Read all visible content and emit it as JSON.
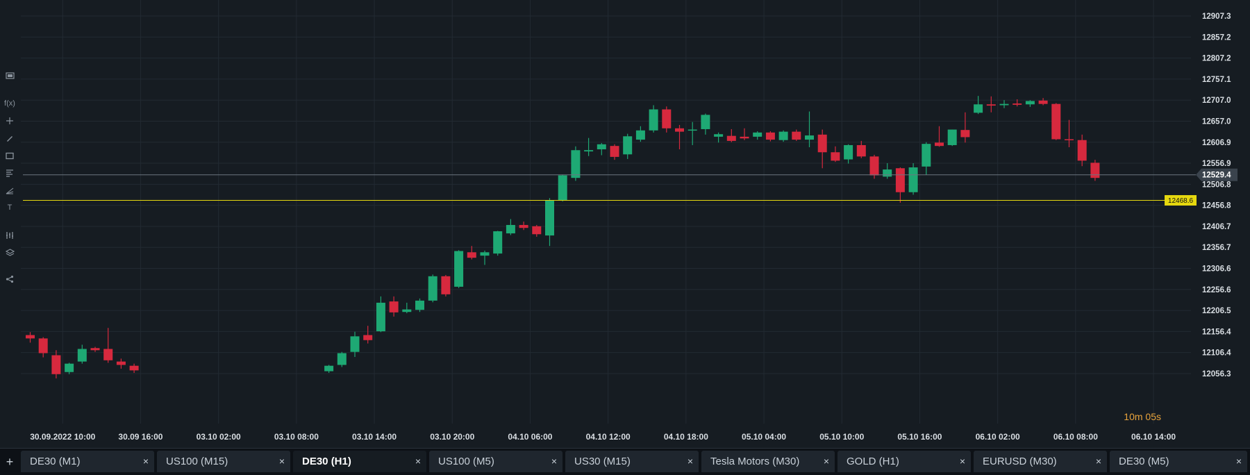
{
  "chart_data": {
    "type": "candlestick",
    "instrument": "DE30 (H1)",
    "ylim": [
      12030,
      12940
    ],
    "y_ticks": [
      "12907.3",
      "12857.2",
      "12807.2",
      "12757.1",
      "12707.0",
      "12657.0",
      "12606.9",
      "12556.9",
      "12506.8",
      "12456.8",
      "12406.7",
      "12356.7",
      "12306.6",
      "12256.6",
      "12206.5",
      "12156.4",
      "12106.4",
      "12056.3"
    ],
    "x_ticks": [
      {
        "index": 2.5,
        "label": "30.09.2022 10:00"
      },
      {
        "index": 8.5,
        "label": "30.09 16:00"
      },
      {
        "index": 14.5,
        "label": "03.10 02:00"
      },
      {
        "index": 20.5,
        "label": "03.10 08:00"
      },
      {
        "index": 26.5,
        "label": "03.10 14:00"
      },
      {
        "index": 32.5,
        "label": "03.10 20:00"
      },
      {
        "index": 38.5,
        "label": "04.10 06:00"
      },
      {
        "index": 44.5,
        "label": "04.10 12:00"
      },
      {
        "index": 50.5,
        "label": "04.10 18:00"
      },
      {
        "index": 56.5,
        "label": "05.10 04:00"
      },
      {
        "index": 62.5,
        "label": "05.10 10:00"
      },
      {
        "index": 68.5,
        "label": "05.10 16:00"
      },
      {
        "index": 74.5,
        "label": "06.10 02:00"
      },
      {
        "index": 80.5,
        "label": "06.10 08:00"
      },
      {
        "index": 86.5,
        "label": "06.10 14:00"
      }
    ],
    "candles": [
      {
        "i": 0,
        "o": 12148,
        "c": 12140,
        "h": 12155,
        "l": 12130
      },
      {
        "i": 1,
        "o": 12140,
        "c": 12105,
        "h": 12143,
        "l": 12095
      },
      {
        "i": 2,
        "o": 12100,
        "c": 12055,
        "h": 12112,
        "l": 12045
      },
      {
        "i": 3,
        "o": 12060,
        "c": 12080,
        "h": 12082,
        "l": 12055
      },
      {
        "i": 4,
        "o": 12085,
        "c": 12115,
        "h": 12125,
        "l": 12080
      },
      {
        "i": 5,
        "o": 12117,
        "c": 12112,
        "h": 12120,
        "l": 12108
      },
      {
        "i": 6,
        "o": 12115,
        "c": 12088,
        "h": 12165,
        "l": 12082
      },
      {
        "i": 7,
        "o": 12085,
        "c": 12077,
        "h": 12092,
        "l": 12068
      },
      {
        "i": 8,
        "o": 12075,
        "c": 12064,
        "h": 12080,
        "l": 12058
      },
      {
        "i": 23,
        "o": 12062,
        "c": 12075,
        "h": 12077,
        "l": 12058
      },
      {
        "i": 24,
        "o": 12077,
        "c": 12105,
        "h": 12108,
        "l": 12072
      },
      {
        "i": 25,
        "o": 12108,
        "c": 12145,
        "h": 12156,
        "l": 12096
      },
      {
        "i": 26,
        "o": 12148,
        "c": 12136,
        "h": 12170,
        "l": 12128
      },
      {
        "i": 27,
        "o": 12157,
        "c": 12225,
        "h": 12240,
        "l": 12155
      },
      {
        "i": 28,
        "o": 12228,
        "c": 12202,
        "h": 12240,
        "l": 12192
      },
      {
        "i": 29,
        "o": 12203,
        "c": 12209,
        "h": 12225,
        "l": 12200
      },
      {
        "i": 30,
        "o": 12208,
        "c": 12230,
        "h": 12235,
        "l": 12203
      },
      {
        "i": 31,
        "o": 12230,
        "c": 12288,
        "h": 12292,
        "l": 12226
      },
      {
        "i": 32,
        "o": 12288,
        "c": 12245,
        "h": 12291,
        "l": 12240
      },
      {
        "i": 33,
        "o": 12263,
        "c": 12348,
        "h": 12350,
        "l": 12260
      },
      {
        "i": 34,
        "o": 12345,
        "c": 12332,
        "h": 12360,
        "l": 12328
      },
      {
        "i": 35,
        "o": 12337,
        "c": 12345,
        "h": 12349,
        "l": 12315
      },
      {
        "i": 36,
        "o": 12342,
        "c": 12395,
        "h": 12396,
        "l": 12337
      },
      {
        "i": 37,
        "o": 12390,
        "c": 12410,
        "h": 12424,
        "l": 12386
      },
      {
        "i": 38,
        "o": 12410,
        "c": 12403,
        "h": 12418,
        "l": 12398
      },
      {
        "i": 39,
        "o": 12407,
        "c": 12388,
        "h": 12410,
        "l": 12382
      },
      {
        "i": 40,
        "o": 12385,
        "c": 12468,
        "h": 12474,
        "l": 12360
      },
      {
        "i": 41,
        "o": 12468,
        "c": 12528,
        "h": 12530,
        "l": 12466
      },
      {
        "i": 42,
        "o": 12522,
        "c": 12588,
        "h": 12597,
        "l": 12515
      },
      {
        "i": 43,
        "o": 12585,
        "c": 12588,
        "h": 12617,
        "l": 12574
      },
      {
        "i": 44,
        "o": 12590,
        "c": 12602,
        "h": 12605,
        "l": 12576
      },
      {
        "i": 45,
        "o": 12598,
        "c": 12572,
        "h": 12602,
        "l": 12565
      },
      {
        "i": 46,
        "o": 12578,
        "c": 12621,
        "h": 12627,
        "l": 12567
      },
      {
        "i": 47,
        "o": 12613,
        "c": 12635,
        "h": 12645,
        "l": 12608
      },
      {
        "i": 48,
        "o": 12635,
        "c": 12685,
        "h": 12695,
        "l": 12630
      },
      {
        "i": 49,
        "o": 12685,
        "c": 12640,
        "h": 12692,
        "l": 12630
      },
      {
        "i": 50,
        "o": 12640,
        "c": 12632,
        "h": 12648,
        "l": 12590
      },
      {
        "i": 51,
        "o": 12635,
        "c": 12637,
        "h": 12655,
        "l": 12600
      },
      {
        "i": 52,
        "o": 12638,
        "c": 12672,
        "h": 12675,
        "l": 12625
      },
      {
        "i": 53,
        "o": 12620,
        "c": 12626,
        "h": 12630,
        "l": 12606
      },
      {
        "i": 54,
        "o": 12622,
        "c": 12610,
        "h": 12638,
        "l": 12607
      },
      {
        "i": 55,
        "o": 12620,
        "c": 12616,
        "h": 12640,
        "l": 12612
      },
      {
        "i": 56,
        "o": 12620,
        "c": 12630,
        "h": 12633,
        "l": 12613
      },
      {
        "i": 57,
        "o": 12630,
        "c": 12613,
        "h": 12633,
        "l": 12609
      },
      {
        "i": 58,
        "o": 12612,
        "c": 12632,
        "h": 12635,
        "l": 12608
      },
      {
        "i": 59,
        "o": 12632,
        "c": 12613,
        "h": 12637,
        "l": 12610
      },
      {
        "i": 60,
        "o": 12613,
        "c": 12623,
        "h": 12680,
        "l": 12595
      },
      {
        "i": 61,
        "o": 12625,
        "c": 12583,
        "h": 12637,
        "l": 12545
      },
      {
        "i": 62,
        "o": 12583,
        "c": 12563,
        "h": 12597,
        "l": 12560
      },
      {
        "i": 63,
        "o": 12566,
        "c": 12600,
        "h": 12602,
        "l": 12556
      },
      {
        "i": 64,
        "o": 12600,
        "c": 12573,
        "h": 12610,
        "l": 12569
      },
      {
        "i": 65,
        "o": 12573,
        "c": 12528,
        "h": 12577,
        "l": 12520
      },
      {
        "i": 66,
        "o": 12525,
        "c": 12542,
        "h": 12557,
        "l": 12520
      },
      {
        "i": 67,
        "o": 12545,
        "c": 12488,
        "h": 12547,
        "l": 12463
      },
      {
        "i": 68,
        "o": 12488,
        "c": 12547,
        "h": 12557,
        "l": 12482
      },
      {
        "i": 69,
        "o": 12549,
        "c": 12603,
        "h": 12607,
        "l": 12529
      },
      {
        "i": 70,
        "o": 12606,
        "c": 12598,
        "h": 12645,
        "l": 12596
      },
      {
        "i": 71,
        "o": 12600,
        "c": 12637,
        "h": 12637,
        "l": 12598
      },
      {
        "i": 72,
        "o": 12636,
        "c": 12619,
        "h": 12678,
        "l": 12606
      },
      {
        "i": 73,
        "o": 12677,
        "c": 12697,
        "h": 12717,
        "l": 12674
      },
      {
        "i": 74,
        "o": 12697,
        "c": 12694,
        "h": 12716,
        "l": 12678
      },
      {
        "i": 75,
        "o": 12695,
        "c": 12698,
        "h": 12707,
        "l": 12688
      },
      {
        "i": 76,
        "o": 12699,
        "c": 12696,
        "h": 12709,
        "l": 12692
      },
      {
        "i": 77,
        "o": 12697,
        "c": 12705,
        "h": 12707,
        "l": 12691
      },
      {
        "i": 78,
        "o": 12706,
        "c": 12698,
        "h": 12712,
        "l": 12695
      },
      {
        "i": 79,
        "o": 12698,
        "c": 12614,
        "h": 12700,
        "l": 12612
      },
      {
        "i": 80,
        "o": 12614,
        "c": 12613,
        "h": 12660,
        "l": 12595
      },
      {
        "i": 81,
        "o": 12612,
        "c": 12563,
        "h": 12625,
        "l": 12550
      },
      {
        "i": 82,
        "o": 12558,
        "c": 12522,
        "h": 12565,
        "l": 12515
      }
    ],
    "horizontal_lines": [
      {
        "value": 12529.4,
        "label": "12529.4",
        "color": "#6c7680",
        "kind": "current-price"
      },
      {
        "value": 12468.6,
        "label": "12468.6",
        "color": "#e6d80f",
        "kind": "alert-level"
      }
    ],
    "colors": {
      "up": "#1ea974",
      "down": "#d7293e",
      "grid": "#222a32",
      "axis_text": "#d9dee3"
    }
  },
  "timer": {
    "text": "10m 05s"
  },
  "toolbar": {
    "icons": [
      "display-icon",
      "function-icon",
      "crosshair-icon",
      "pencil-icon",
      "rectangle-icon",
      "fibonacci-icon",
      "trend-angle-icon",
      "text-icon",
      "indicator-icon",
      "layers-icon",
      "share-icon"
    ],
    "fx_label": "f(x)",
    "text_label": "T"
  },
  "tabs": {
    "add_label": "+",
    "items": [
      {
        "label": "DE30 (M1)",
        "active": false
      },
      {
        "label": "US100 (M15)",
        "active": false
      },
      {
        "label": "DE30 (H1)",
        "active": true
      },
      {
        "label": "US100 (M5)",
        "active": false
      },
      {
        "label": "US30 (M15)",
        "active": false
      },
      {
        "label": "Tesla Motors (M30)",
        "active": false
      },
      {
        "label": "GOLD (H1)",
        "active": false
      },
      {
        "label": "EURUSD (M30)",
        "active": false
      },
      {
        "label": "DE30 (M5)",
        "active": false
      }
    ],
    "close_label": "×"
  }
}
